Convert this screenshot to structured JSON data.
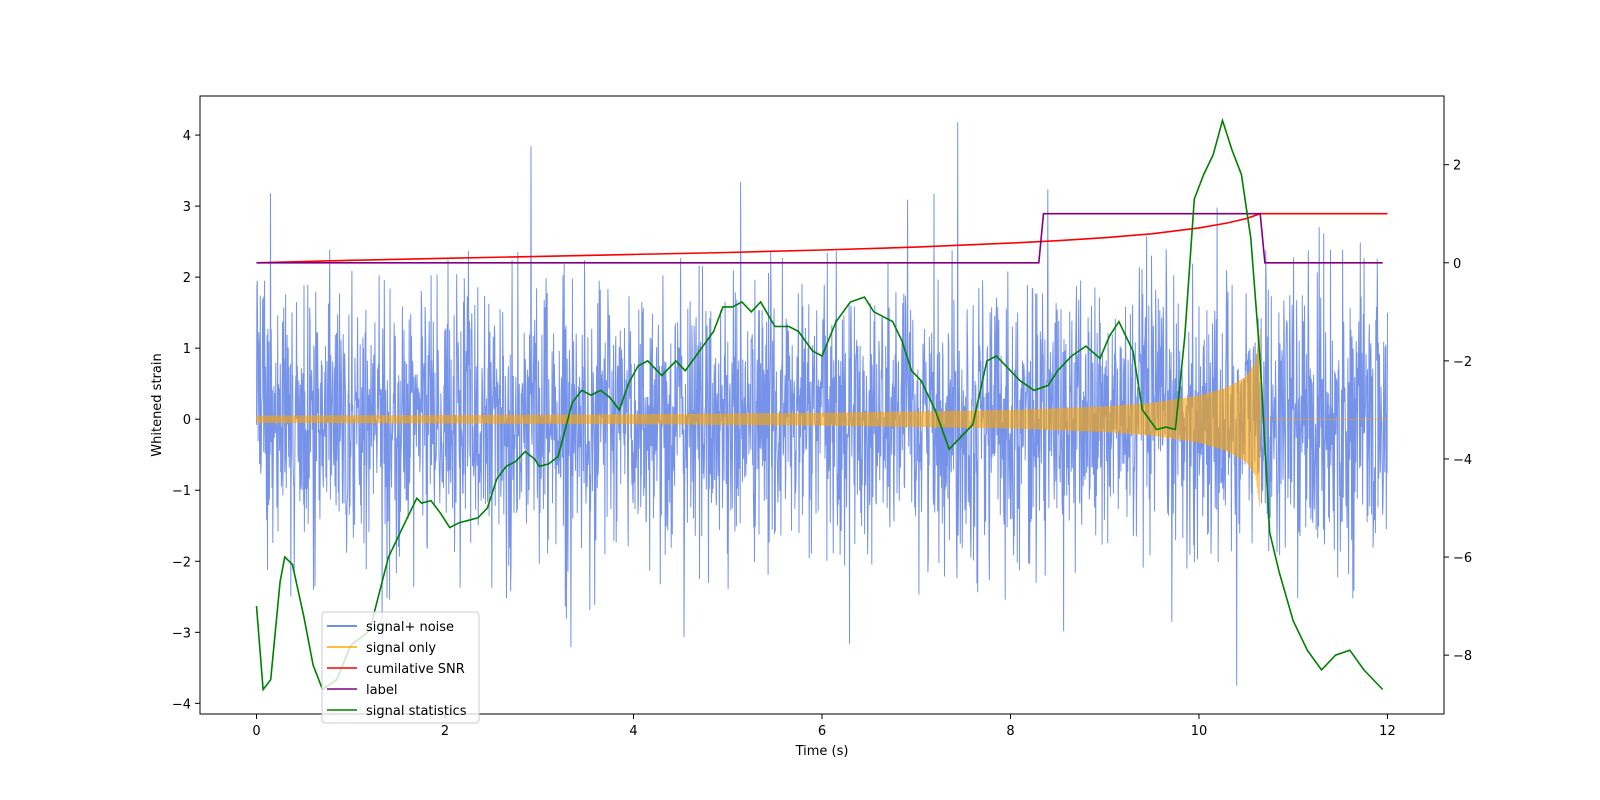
{
  "chart_data": {
    "type": "line",
    "title": "",
    "xlabel": "Time (s)",
    "ylabel": "Whitened strain",
    "y2label": "",
    "xlim": [
      -0.6,
      12.6
    ],
    "ylim": [
      -4.15,
      4.55
    ],
    "y2lim": [
      -9.2,
      3.4
    ],
    "x_ticks": [
      0,
      2,
      4,
      6,
      8,
      10,
      12
    ],
    "x_tick_labels": [
      "0",
      "2",
      "4",
      "6",
      "8",
      "10",
      "12"
    ],
    "y_ticks": [
      -4,
      -3,
      -2,
      -1,
      0,
      1,
      2,
      3,
      4
    ],
    "y_tick_labels": [
      "−4",
      "−3",
      "−2",
      "−1",
      "0",
      "1",
      "2",
      "3",
      "4"
    ],
    "y2_ticks": [
      -8,
      -6,
      -4,
      -2,
      0,
      2
    ],
    "y2_tick_labels": [
      "−8",
      "−6",
      "−4",
      "−2",
      "0",
      "2"
    ],
    "legend": {
      "position": "lower-left",
      "entries": [
        {
          "label": "signal+ noise",
          "color": "#4169E1"
        },
        {
          "label": "signal only",
          "color": "#FFA500"
        },
        {
          "label": "cumilative SNR",
          "color": "#FF0000"
        },
        {
          "label": "label",
          "color": "#800080"
        },
        {
          "label": "signal statistics",
          "color": "#008000"
        }
      ]
    },
    "series": [
      {
        "name": "signal+ noise",
        "axis": "left",
        "color": "#4169E1",
        "x_range": [
          0,
          12
        ],
        "description": "whitened detector noise with injected signal, roughly Gaussian, spikes to about +4.2 and -3.75",
        "sigma": 0.95,
        "peak_max": 4.18,
        "peak_min": -3.75
      },
      {
        "name": "signal only",
        "axis": "left",
        "color": "#FFA500",
        "x_range": [
          0,
          12
        ],
        "merger_time": 10.65,
        "envelope": {
          "x": [
            0,
            2,
            4,
            6,
            8,
            9,
            9.5,
            10,
            10.3,
            10.5,
            10.6,
            10.65
          ],
          "amp": [
            0.05,
            0.06,
            0.07,
            0.09,
            0.13,
            0.18,
            0.23,
            0.33,
            0.45,
            0.6,
            0.8,
            1.3
          ]
        }
      },
      {
        "name": "cumilative SNR",
        "axis": "right",
        "color": "#FF0000",
        "x": [
          0,
          1,
          2,
          3,
          4,
          5,
          6,
          7,
          8,
          8.5,
          9,
          9.5,
          10,
          10.3,
          10.5,
          10.65,
          12
        ],
        "values": [
          0.0,
          0.05,
          0.09,
          0.13,
          0.17,
          0.21,
          0.26,
          0.32,
          0.4,
          0.45,
          0.51,
          0.59,
          0.71,
          0.81,
          0.9,
          1.0,
          1.0
        ]
      },
      {
        "name": "label",
        "axis": "right",
        "color": "#800080",
        "x": [
          0,
          8.3,
          8.35,
          10.65,
          10.7,
          11.95
        ],
        "values": [
          0,
          0,
          1,
          1,
          0,
          0
        ]
      },
      {
        "name": "signal statistics",
        "axis": "right",
        "color": "#008000",
        "x": [
          0,
          0.07,
          0.15,
          0.25,
          0.3,
          0.38,
          0.5,
          0.6,
          0.7,
          0.85,
          1.0,
          1.2,
          1.4,
          1.6,
          1.7,
          1.75,
          1.85,
          1.95,
          2.05,
          2.15,
          2.25,
          2.35,
          2.45,
          2.55,
          2.65,
          2.75,
          2.85,
          2.95,
          3.0,
          3.1,
          3.2,
          3.35,
          3.45,
          3.55,
          3.65,
          3.75,
          3.85,
          3.95,
          4.05,
          4.15,
          4.3,
          4.45,
          4.55,
          4.7,
          4.85,
          4.95,
          5.05,
          5.15,
          5.25,
          5.35,
          5.5,
          5.65,
          5.75,
          5.9,
          6.0,
          6.15,
          6.3,
          6.45,
          6.55,
          6.65,
          6.75,
          6.85,
          6.95,
          7.05,
          7.2,
          7.35,
          7.45,
          7.6,
          7.75,
          7.85,
          8.0,
          8.1,
          8.25,
          8.4,
          8.5,
          8.65,
          8.8,
          8.95,
          9.05,
          9.15,
          9.3,
          9.4,
          9.55,
          9.65,
          9.75,
          9.85,
          9.95,
          10.05,
          10.15,
          10.25,
          10.35,
          10.45,
          10.55,
          10.65,
          10.75,
          10.85,
          11.0,
          11.15,
          11.3,
          11.45,
          11.6,
          11.75,
          11.95
        ],
        "values": [
          -7.0,
          -8.7,
          -8.5,
          -6.5,
          -6.0,
          -6.15,
          -7.2,
          -8.2,
          -8.7,
          -8.5,
          -7.8,
          -7.5,
          -6.0,
          -5.2,
          -4.8,
          -4.9,
          -4.85,
          -5.1,
          -5.4,
          -5.3,
          -5.25,
          -5.2,
          -5.0,
          -4.4,
          -4.15,
          -4.05,
          -3.85,
          -4.0,
          -4.15,
          -4.1,
          -3.95,
          -2.85,
          -2.6,
          -2.7,
          -2.6,
          -2.75,
          -3.0,
          -2.45,
          -2.1,
          -2.0,
          -2.3,
          -2.0,
          -2.2,
          -1.8,
          -1.4,
          -0.9,
          -0.9,
          -0.8,
          -1.0,
          -0.8,
          -1.3,
          -1.3,
          -1.4,
          -1.8,
          -1.9,
          -1.2,
          -0.8,
          -0.7,
          -1.0,
          -1.1,
          -1.2,
          -1.6,
          -2.2,
          -2.4,
          -3.0,
          -3.8,
          -3.6,
          -3.3,
          -2.0,
          -1.9,
          -2.2,
          -2.4,
          -2.6,
          -2.5,
          -2.2,
          -1.9,
          -1.7,
          -1.95,
          -1.5,
          -1.2,
          -1.8,
          -3.0,
          -3.4,
          -3.35,
          -3.4,
          -1.5,
          1.3,
          1.8,
          2.2,
          2.9,
          2.3,
          1.8,
          0.5,
          -2.0,
          -5.5,
          -6.3,
          -7.3,
          -7.9,
          -8.3,
          -8.0,
          -7.9,
          -8.3,
          -8.7
        ]
      }
    ]
  }
}
